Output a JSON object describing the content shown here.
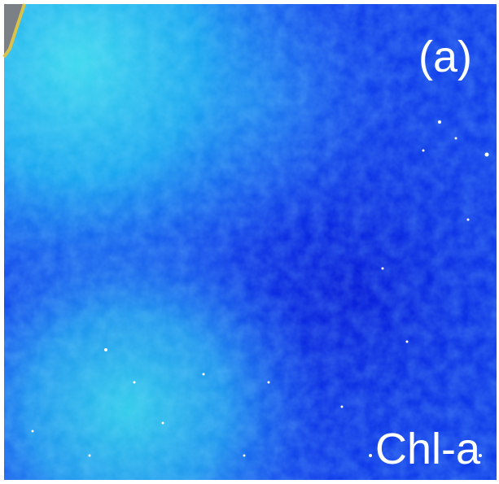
{
  "panel_label": "(a)",
  "variable_label": "Chl-a"
}
